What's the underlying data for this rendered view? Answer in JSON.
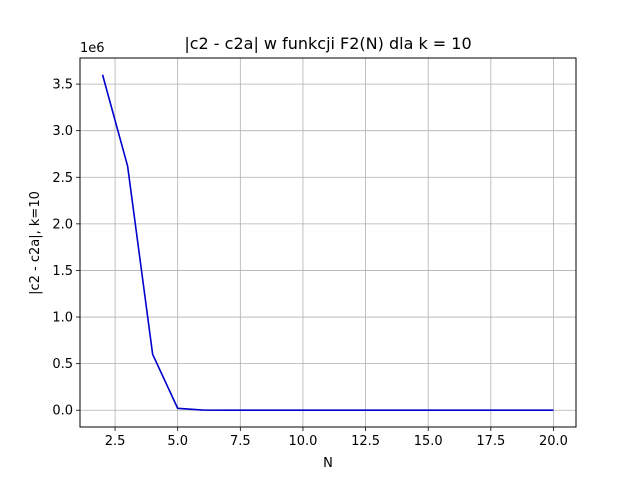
{
  "chart_data": {
    "type": "line",
    "title": "|c2 - c2a| w funkcji F2(N) dla k = 10",
    "xlabel": "N",
    "ylabel": "|c2 - c2a|, k=10",
    "y_offset_label": "1e6",
    "xlim": [
      1.1,
      20.9
    ],
    "ylim": [
      -0.18,
      3.78
    ],
    "y_scale_factor": 1000000,
    "x_ticks": [
      2.5,
      5.0,
      7.5,
      10.0,
      12.5,
      15.0,
      17.5,
      20.0
    ],
    "x_tick_labels": [
      "2.5",
      "5.0",
      "7.5",
      "10.0",
      "12.5",
      "15.0",
      "17.5",
      "20.0"
    ],
    "y_ticks": [
      0.0,
      0.5,
      1.0,
      1.5,
      2.0,
      2.5,
      3.0,
      3.5
    ],
    "y_tick_labels": [
      "0.0",
      "0.5",
      "1.0",
      "1.5",
      "2.0",
      "2.5",
      "3.0",
      "3.5"
    ],
    "grid": true,
    "legend": "none",
    "series": [
      {
        "color": "#0000cc",
        "x": [
          2,
          3,
          4,
          5,
          6,
          7,
          8,
          9,
          10,
          11,
          12,
          13,
          14,
          15,
          16,
          17,
          18,
          19,
          20
        ],
        "y": [
          3.6,
          2.62,
          0.6,
          0.02,
          0.002,
          0.0,
          0.0,
          0.0,
          0.0,
          0.0,
          0.0,
          0.0,
          0.0,
          0.0,
          0.0,
          0.0,
          0.0,
          0.0,
          0.0
        ]
      }
    ]
  }
}
